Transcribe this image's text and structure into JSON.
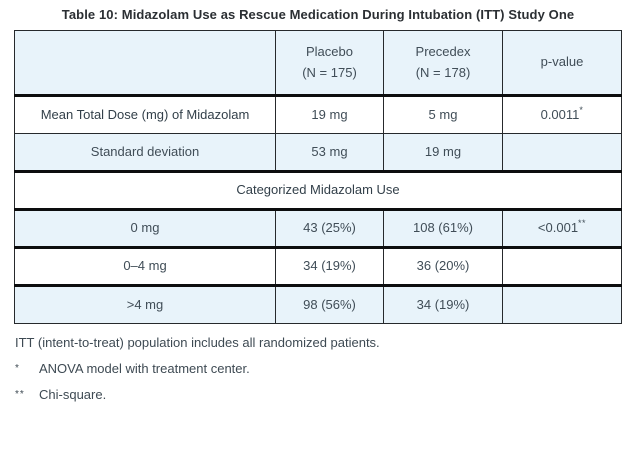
{
  "title": "Table 10: Midazolam Use as Rescue Medication During Intubation (ITT) Study One",
  "table": {
    "columns": [
      {
        "line1": "Placebo",
        "line2": "(N = 175)"
      },
      {
        "line1": "Precedex",
        "line2": "(N = 178)"
      },
      {
        "line1": "p-value",
        "line2": ""
      }
    ],
    "rows": [
      {
        "label": "Mean Total Dose (mg) of Midazolam",
        "placebo": "19 mg",
        "precedex": "5 mg",
        "p_value": "0.0011",
        "p_sup": "*"
      },
      {
        "label": "Standard deviation",
        "placebo": "53 mg",
        "precedex": "19 mg",
        "p_value": "",
        "p_sup": ""
      },
      {
        "label": "Categorized Midazolam Use"
      },
      {
        "label": "0 mg",
        "placebo": "43 (25%)",
        "precedex": "108 (61%)",
        "p_value": "<0.001",
        "p_sup": "**"
      },
      {
        "label": "0–4 mg",
        "placebo": "34 (19%)",
        "precedex": "36 (20%)",
        "p_value": "",
        "p_sup": ""
      },
      {
        "label": ">4 mg",
        "placebo": "98 (56%)",
        "precedex": "34 (19%)",
        "p_value": "",
        "p_sup": ""
      }
    ]
  },
  "footnotes": {
    "itt": "ITT (intent-to-treat) population includes all randomized patients.",
    "notes": [
      {
        "marker": "*",
        "text": "ANOVA model with treatment center."
      },
      {
        "marker": "**",
        "text": "Chi-square."
      }
    ]
  }
}
